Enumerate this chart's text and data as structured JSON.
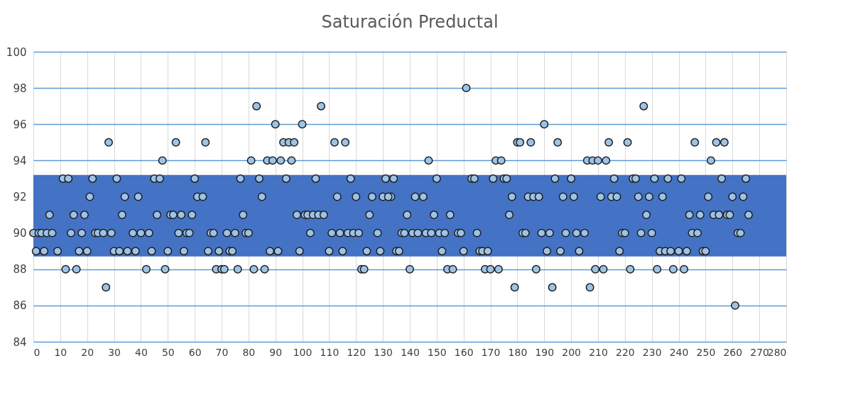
{
  "chart_data": {
    "type": "scatter",
    "title": "Saturación Preductal",
    "xlim": [
      0,
      280
    ],
    "xticks": [
      0,
      10,
      20,
      30,
      40,
      50,
      60,
      70,
      80,
      90,
      100,
      110,
      120,
      130,
      140,
      150,
      160,
      170,
      180,
      190,
      200,
      210,
      220,
      230,
      240,
      250,
      260,
      270,
      280
    ],
    "ylim": [
      84,
      100
    ],
    "yticks": [
      84,
      86,
      88,
      90,
      92,
      94,
      96,
      98,
      100
    ],
    "grid": true,
    "marker": "circle",
    "bands": [
      {
        "axis": "y",
        "from": 88.7,
        "to": 93.2,
        "color": "#4472c4"
      }
    ],
    "series": [
      {
        "color": "#9dc3e6",
        "x": [
          28,
          11,
          13,
          22,
          31,
          21,
          34,
          39,
          6,
          15,
          19,
          33,
          0,
          2,
          3,
          5,
          7,
          14,
          18,
          23,
          24,
          26,
          29,
          37,
          40,
          43,
          1,
          4,
          9,
          17,
          20,
          30,
          32,
          35,
          38,
          44,
          12,
          16,
          42,
          27,
          83,
          53,
          64,
          48,
          81,
          87,
          45,
          47,
          60,
          77,
          84,
          61,
          63,
          85,
          46,
          51,
          52,
          55,
          59,
          78,
          54,
          57,
          58,
          66,
          67,
          72,
          75,
          79,
          80,
          50,
          56,
          65,
          69,
          73,
          74,
          88,
          49,
          68,
          70,
          71,
          76,
          82,
          86,
          107,
          90,
          100,
          93,
          95,
          97,
          112,
          116,
          89,
          92,
          96,
          94,
          105,
          118,
          131,
          113,
          120,
          126,
          130,
          133,
          98,
          101,
          102,
          104,
          106,
          108,
          125,
          103,
          111,
          114,
          117,
          119,
          121,
          128,
          91,
          99,
          110,
          115,
          124,
          129,
          122,
          123,
          161,
          147,
          172,
          174,
          134,
          150,
          163,
          164,
          171,
          175,
          176,
          132,
          142,
          145,
          178,
          139,
          149,
          155,
          177,
          137,
          138,
          141,
          143,
          146,
          148,
          151,
          153,
          158,
          159,
          165,
          135,
          136,
          152,
          160,
          166,
          167,
          169,
          140,
          154,
          156,
          168,
          170,
          173,
          179,
          190,
          180,
          181,
          185,
          195,
          214,
          221,
          206,
          208,
          210,
          213,
          194,
          200,
          216,
          223,
          184,
          186,
          188,
          197,
          201,
          211,
          215,
          217,
          182,
          183,
          189,
          192,
          198,
          202,
          205,
          219,
          220,
          187,
          191,
          196,
          203,
          218,
          193,
          209,
          212,
          222,
          207,
          227,
          246,
          254,
          257,
          252,
          224,
          231,
          236,
          241,
          256,
          265,
          225,
          229,
          234,
          251,
          260,
          264,
          228,
          244,
          248,
          253,
          255,
          258,
          259,
          266,
          226,
          230,
          245,
          247,
          262,
          263,
          233,
          235,
          237,
          240,
          243,
          249,
          250,
          232,
          238,
          242,
          261
        ],
        "values": [
          95,
          93,
          93,
          93,
          93,
          92,
          92,
          92,
          91,
          91,
          91,
          91,
          90,
          90,
          90,
          90,
          90,
          90,
          90,
          90,
          90,
          90,
          90,
          90,
          90,
          90,
          89,
          89,
          89,
          89,
          89,
          89,
          89,
          89,
          89,
          89,
          88,
          88,
          88,
          87,
          97,
          95,
          95,
          94,
          94,
          94,
          93,
          93,
          93,
          93,
          93,
          92,
          92,
          92,
          91,
          91,
          91,
          91,
          91,
          91,
          90,
          90,
          90,
          90,
          90,
          90,
          90,
          90,
          90,
          89,
          89,
          89,
          89,
          89,
          89,
          89,
          88,
          88,
          88,
          88,
          88,
          88,
          88,
          97,
          96,
          96,
          95,
          95,
          95,
          95,
          95,
          94,
          94,
          94,
          93,
          93,
          93,
          93,
          92,
          92,
          92,
          92,
          92,
          91,
          91,
          91,
          91,
          91,
          91,
          91,
          90,
          90,
          90,
          90,
          90,
          90,
          90,
          89,
          89,
          89,
          89,
          89,
          89,
          88,
          88,
          98,
          94,
          94,
          94,
          93,
          93,
          93,
          93,
          93,
          93,
          93,
          92,
          92,
          92,
          92,
          91,
          91,
          91,
          91,
          90,
          90,
          90,
          90,
          90,
          90,
          90,
          90,
          90,
          90,
          90,
          89,
          89,
          89,
          89,
          89,
          89,
          89,
          88,
          88,
          88,
          88,
          88,
          88,
          87,
          96,
          95,
          95,
          95,
          95,
          95,
          95,
          94,
          94,
          94,
          94,
          93,
          93,
          93,
          93,
          92,
          92,
          92,
          92,
          92,
          92,
          92,
          92,
          90,
          90,
          90,
          90,
          90,
          90,
          90,
          90,
          90,
          88,
          89,
          89,
          89,
          89,
          87,
          88,
          88,
          88,
          87,
          97,
          95,
          95,
          95,
          94,
          93,
          93,
          93,
          93,
          93,
          93,
          92,
          92,
          92,
          92,
          92,
          92,
          91,
          91,
          91,
          91,
          91,
          91,
          91,
          91,
          90,
          90,
          90,
          90,
          90,
          90,
          89,
          89,
          89,
          89,
          89,
          89,
          89,
          88,
          88,
          88,
          86
        ]
      }
    ]
  }
}
